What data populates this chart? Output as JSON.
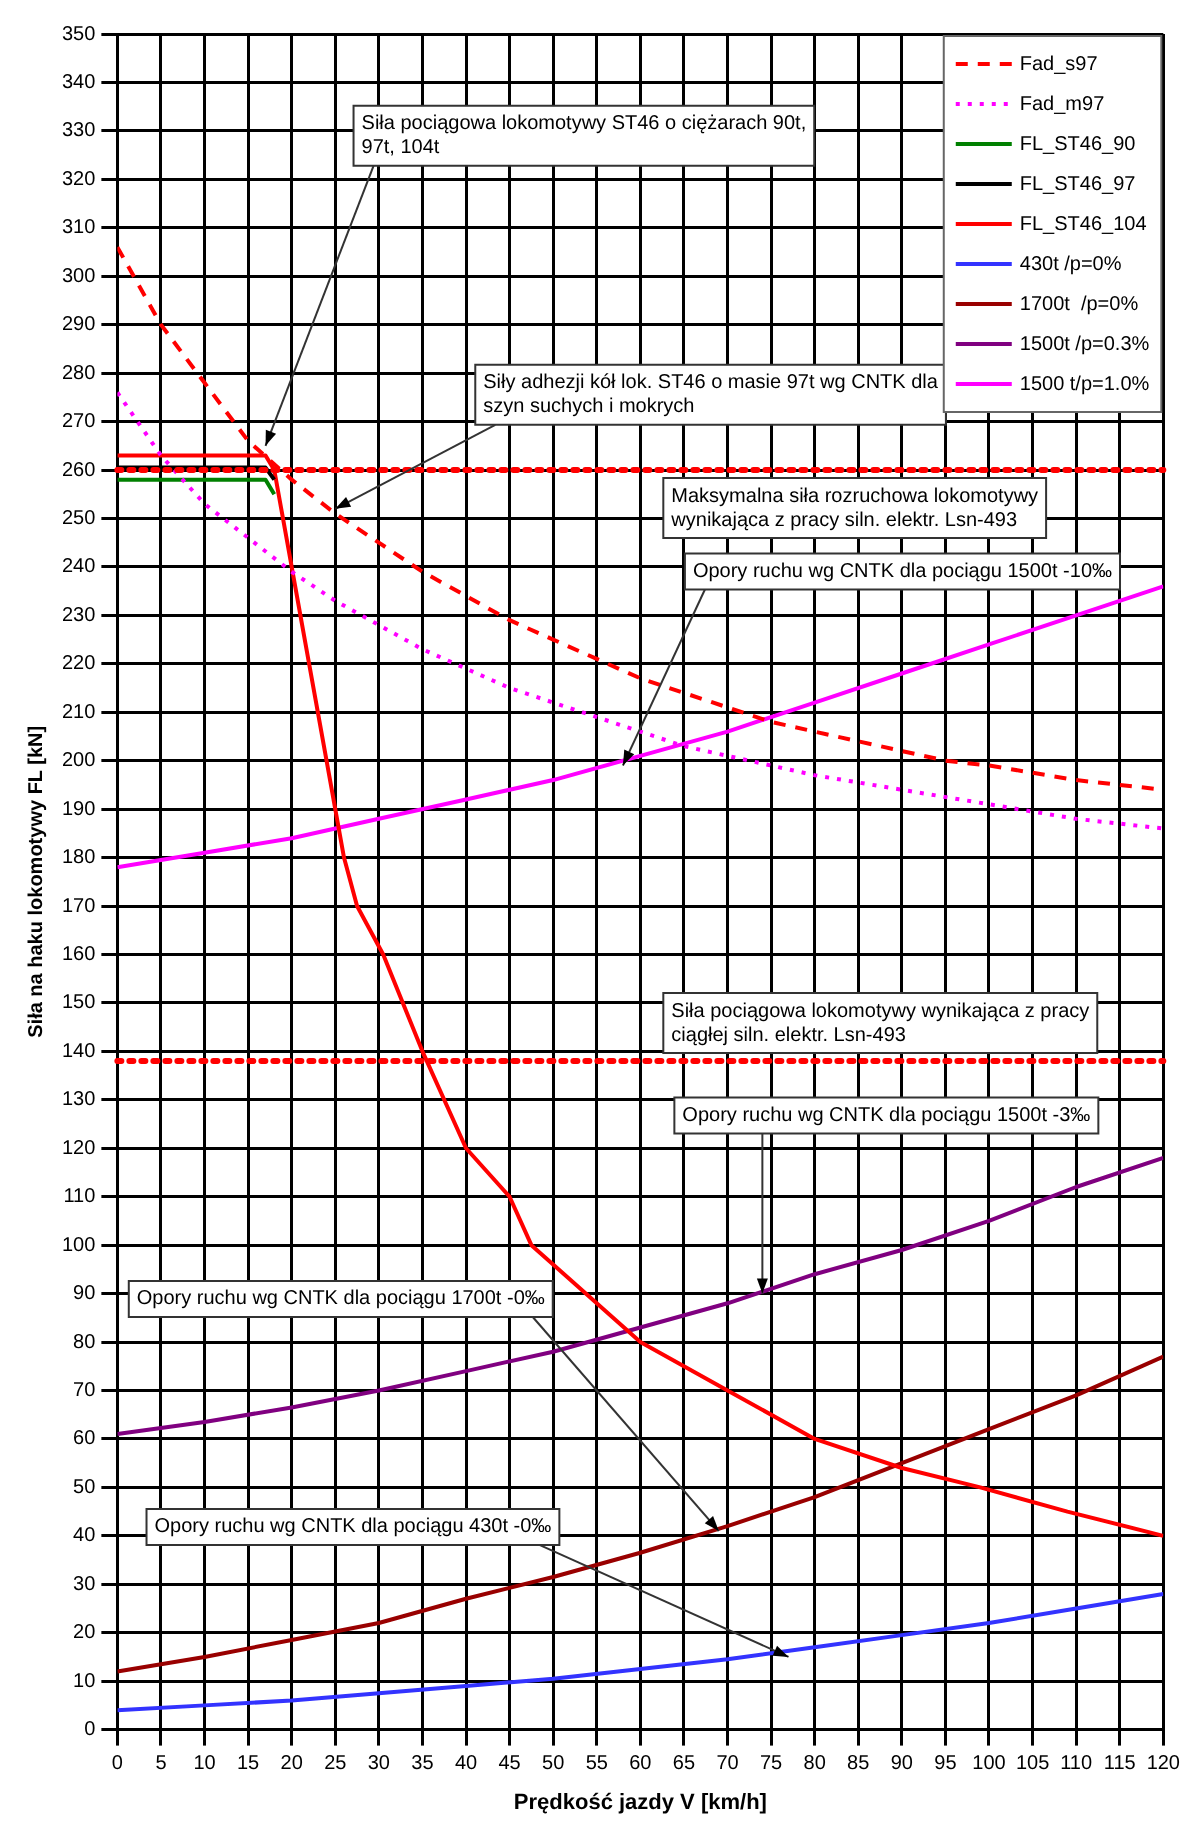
{
  "chart_data": {
    "type": "line",
    "xlabel": "Prędkość jazdy V [km/h]",
    "ylabel": "Siła na haku lokomotywy FL [kN]",
    "xlim": [
      0,
      120
    ],
    "xticks": [
      0,
      5,
      10,
      15,
      20,
      25,
      30,
      35,
      40,
      45,
      50,
      55,
      60,
      65,
      70,
      75,
      80,
      85,
      90,
      95,
      100,
      105,
      110,
      115,
      120
    ],
    "ylim": [
      0,
      350
    ],
    "yticks": [
      0,
      10,
      20,
      30,
      40,
      50,
      60,
      70,
      80,
      90,
      100,
      110,
      120,
      130,
      140,
      150,
      160,
      170,
      180,
      190,
      200,
      210,
      220,
      230,
      240,
      250,
      260,
      270,
      280,
      290,
      300,
      310,
      320,
      330,
      340,
      350
    ],
    "grid": true,
    "legend": "top right",
    "marker": "none",
    "series": [
      {
        "name": "Fad_s97",
        "color": "#ff0000",
        "line_style": "dashed",
        "x": [
          0,
          5,
          10,
          15,
          20,
          25,
          30,
          35,
          40,
          45,
          50,
          55,
          60,
          65,
          70,
          75,
          80,
          85,
          90,
          95,
          100,
          110,
          120
        ],
        "values": [
          306,
          290,
          278,
          266,
          258,
          251,
          245,
          239,
          234,
          229,
          225,
          221,
          217,
          214,
          211,
          208,
          206,
          204,
          202,
          200,
          199,
          196,
          194
        ]
      },
      {
        "name": "Fad_m97",
        "color": "#ff00ff",
        "line_style": "dotted",
        "x": [
          0,
          5,
          10,
          15,
          20,
          25,
          30,
          35,
          40,
          45,
          50,
          55,
          60,
          65,
          70,
          75,
          80,
          90,
          100,
          110,
          120
        ],
        "values": [
          276,
          263,
          253,
          246,
          239,
          233,
          228,
          223,
          219,
          215,
          212,
          209,
          206,
          203,
          201,
          199,
          197,
          194,
          191,
          188,
          186
        ]
      },
      {
        "name": "FL_ST46_90",
        "color": "#008000",
        "line_style": "solid",
        "x": [
          0,
          17,
          18
        ],
        "values": [
          258,
          258,
          255
        ]
      },
      {
        "name": "FL_ST46_97",
        "color": "#000000",
        "line_style": "solid",
        "x": [
          0,
          17,
          18
        ],
        "values": [
          260.5,
          260.5,
          258
        ]
      },
      {
        "name": "FL_ST46_104",
        "color": "#ff0000",
        "line_style": "solid",
        "x": [
          0,
          17,
          18,
          19,
          22,
          24,
          26,
          27.5,
          30.5,
          35,
          40,
          45,
          47.5,
          60,
          70,
          80,
          90,
          99,
          109,
          120
        ],
        "values": [
          263,
          263,
          260,
          250,
          220,
          200,
          180,
          170,
          160,
          140,
          120,
          110,
          100,
          80,
          70,
          60,
          54,
          50,
          45,
          40
        ]
      },
      {
        "name": "430t /p=0%",
        "color": "#3333ff",
        "line_style": "solid",
        "x": [
          0,
          10,
          20,
          30,
          40,
          50,
          60,
          70,
          80,
          90,
          100,
          110,
          120
        ],
        "values": [
          4,
          5,
          6,
          7.5,
          9,
          10.5,
          12.5,
          14.5,
          17,
          19.5,
          22,
          25,
          28
        ]
      },
      {
        "name": "1700t  /p=0%",
        "color": "#990000",
        "line_style": "solid",
        "x": [
          0,
          10,
          20,
          30,
          40,
          50,
          60,
          70,
          80,
          90,
          100,
          110,
          120
        ],
        "values": [
          12,
          15,
          18.5,
          22,
          27,
          31.5,
          36.5,
          42,
          48,
          55,
          62,
          69,
          77
        ]
      },
      {
        "name": "1500t /p=0.3%",
        "color": "#800080",
        "line_style": "solid",
        "x": [
          0,
          10,
          20,
          30,
          40,
          50,
          60,
          70,
          80,
          90,
          100,
          110,
          120
        ],
        "values": [
          61,
          63.5,
          66.5,
          70,
          74,
          78,
          83,
          88,
          94,
          99,
          105,
          112,
          118
        ]
      },
      {
        "name": "1500 t/p=1.0%",
        "color": "#ff00ff",
        "line_style": "solid",
        "x": [
          0,
          10,
          20,
          30,
          40,
          50,
          60,
          70,
          80,
          90,
          100,
          110,
          120
        ],
        "values": [
          178,
          181,
          184,
          188,
          192,
          196,
          201,
          206,
          212,
          218,
          224,
          230,
          236
        ]
      }
    ],
    "ref_lines": [
      {
        "axis": "y",
        "value": 260,
        "label": "Maksymalna siła rozruchowa lokomotywy wynikająca z pracy siln. elektr. Lsn-493",
        "color": "#ff0000",
        "line_style": "dotted"
      },
      {
        "axis": "y",
        "value": 138,
        "label": "Siła pociągowa lokomotywy wynikająca z pracy ciągłej siln. elektr. Lsn-493",
        "color": "#ff0000",
        "line_style": "dotted"
      }
    ],
    "annotations": [
      {
        "text": "Siła pociągowa lokomotywy ST46 o ciężarach 90t, 97t, 104t",
        "x": 17,
        "y": 265
      },
      {
        "text": "Siły adhezji kół lok. ST46 o masie 97t wg CNTK dla szyn suchych i mokrych",
        "x": 25,
        "y": 252
      },
      {
        "text": "Opory ruchu wg CNTK dla pociągu 1500t -10‰",
        "x": 58,
        "y": 199
      },
      {
        "text": "Opory ruchu wg CNTK dla pociągu 1500t -3‰",
        "x": 74,
        "y": 90
      },
      {
        "text": "Opory ruchu wg CNTK dla pociągu 1700t -0‰",
        "x": 69,
        "y": 41
      },
      {
        "text": "Opory ruchu wg CNTK dla pociągu 430t -0‰",
        "x": 77,
        "y": 15
      }
    ]
  }
}
